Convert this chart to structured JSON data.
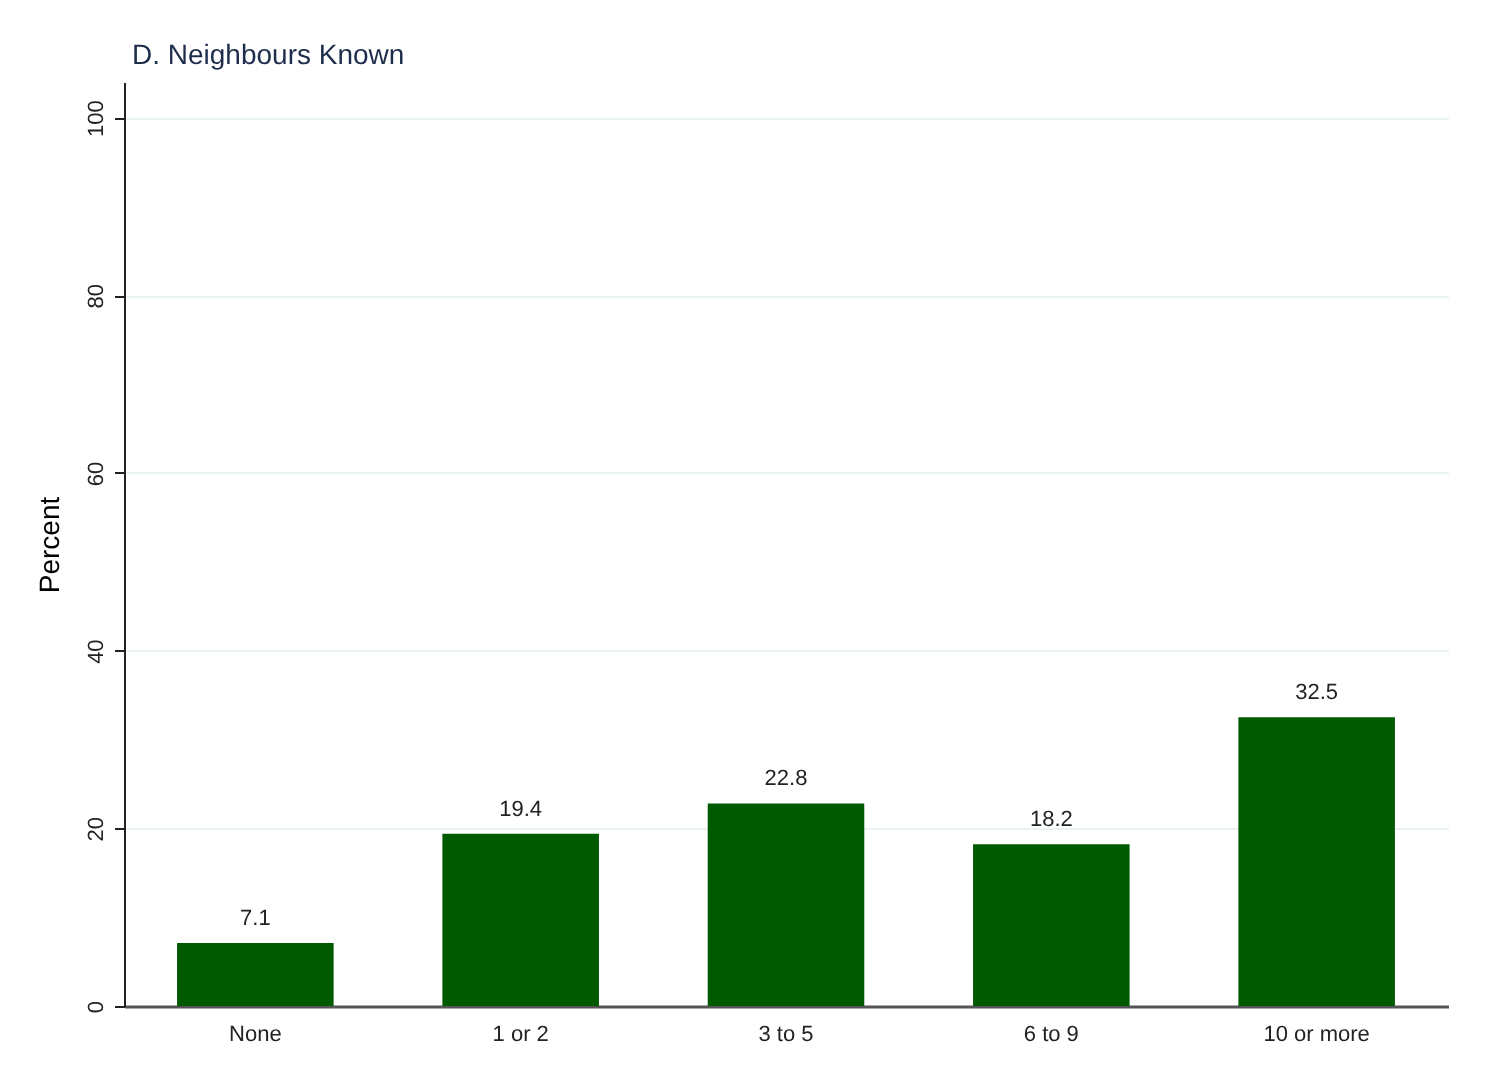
{
  "chart_data": {
    "type": "bar",
    "title": "D. Neighbours Known",
    "ylabel": "Percent",
    "categories": [
      "None",
      "1 or 2",
      "3 to 5",
      "6 to 9",
      "10 or more"
    ],
    "values": [
      7.1,
      19.4,
      22.8,
      18.2,
      32.5
    ],
    "color": "#005a00",
    "ylim": [
      0,
      104
    ],
    "yticks": [
      0,
      20,
      40,
      60,
      80,
      100
    ],
    "grid": "y",
    "data_labels": true
  }
}
